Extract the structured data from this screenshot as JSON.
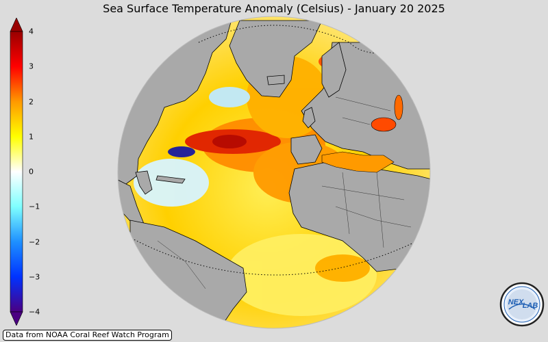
{
  "title": "Sea Surface Temperature Anomaly (Celsius) - January 20 2025",
  "colorbar": {
    "min": -4,
    "max": 4,
    "ticks": [
      "4",
      "3",
      "2",
      "1",
      "0",
      "−1",
      "−2",
      "−3",
      "−4"
    ],
    "extend": "both",
    "stops": [
      {
        "v": -4,
        "c": "#4b0082"
      },
      {
        "v": -3,
        "c": "#0033ff"
      },
      {
        "v": -2,
        "c": "#1e90ff"
      },
      {
        "v": -1,
        "c": "#7fffff"
      },
      {
        "v": 0,
        "c": "#ffffff"
      },
      {
        "v": 1,
        "c": "#ffff00"
      },
      {
        "v": 2,
        "c": "#ff9900"
      },
      {
        "v": 3,
        "c": "#ff0000"
      },
      {
        "v": 4,
        "c": "#990000"
      }
    ]
  },
  "map": {
    "projection": "orthographic",
    "land_color": "#a9a9a9",
    "ocean_base_color": "#ffd21e"
  },
  "credit": "Data from NOAA Coral Reef Watch Program",
  "logo": {
    "text_left": "NEX",
    "text_right": "LAB",
    "accent": "#1e5fb4"
  }
}
